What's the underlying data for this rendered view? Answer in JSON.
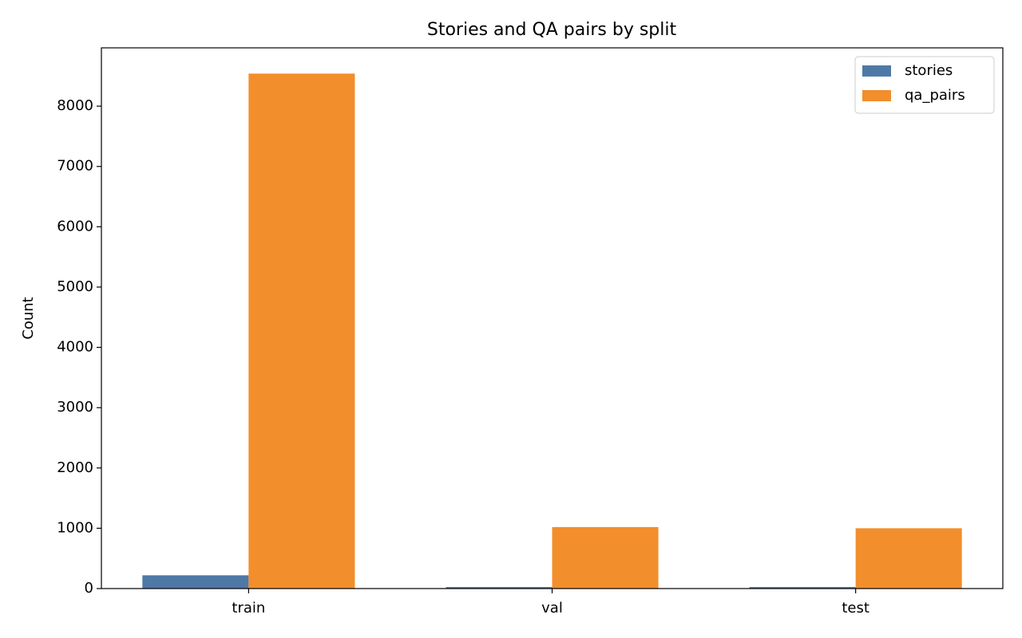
{
  "chart_data": {
    "type": "bar",
    "title": "Stories and QA pairs by split",
    "y_label": "Count",
    "categories": [
      "train",
      "val",
      "test"
    ],
    "series": [
      {
        "name": "stories",
        "color": "#4e79a7",
        "values": [
          220,
          25,
          25
        ]
      },
      {
        "name": "qa_pairs",
        "color": "#f28e2b",
        "values": [
          8540,
          1020,
          1000
        ]
      }
    ],
    "ylim": [
      0,
      8967
    ],
    "yticks": [
      0,
      1000,
      2000,
      3000,
      4000,
      5000,
      6000,
      7000,
      8000
    ],
    "legend": "upper right"
  }
}
